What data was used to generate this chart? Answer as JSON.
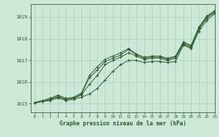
{
  "title": "Graphe pression niveau de la mer (hPa)",
  "background_color": "#cde8d8",
  "grid_color": "#a8cdb8",
  "line_color": "#2d5a2d",
  "xlim": [
    -0.5,
    23
  ],
  "ylim": [
    1014.6,
    1019.6
  ],
  "yticks": [
    1015,
    1016,
    1017,
    1018,
    1019
  ],
  "xticks": [
    0,
    1,
    2,
    3,
    4,
    5,
    6,
    7,
    8,
    9,
    10,
    11,
    12,
    13,
    14,
    15,
    16,
    17,
    18,
    19,
    20,
    21,
    22,
    23
  ],
  "lines": [
    [
      1015.05,
      1015.1,
      1015.15,
      1015.25,
      1015.15,
      1015.2,
      1015.3,
      1015.45,
      1015.7,
      1016.1,
      1016.5,
      1016.8,
      1017.0,
      1017.0,
      1016.9,
      1016.95,
      1016.95,
      1016.9,
      1016.95,
      1017.7,
      1017.55,
      1018.35,
      1018.85,
      1019.15
    ],
    [
      1015.05,
      1015.1,
      1015.2,
      1015.3,
      1015.2,
      1015.25,
      1015.4,
      1015.9,
      1016.3,
      1016.8,
      1017.0,
      1017.15,
      1017.35,
      1017.2,
      1017.05,
      1017.1,
      1017.1,
      1017.0,
      1017.1,
      1017.75,
      1017.6,
      1018.45,
      1018.95,
      1019.2
    ],
    [
      1015.05,
      1015.1,
      1015.2,
      1015.35,
      1015.2,
      1015.25,
      1015.45,
      1016.2,
      1016.55,
      1016.95,
      1017.1,
      1017.25,
      1017.5,
      1017.25,
      1017.1,
      1017.15,
      1017.15,
      1017.05,
      1017.15,
      1017.8,
      1017.65,
      1018.5,
      1019.0,
      1019.25
    ],
    [
      1015.05,
      1015.15,
      1015.25,
      1015.4,
      1015.25,
      1015.3,
      1015.5,
      1016.3,
      1016.7,
      1017.05,
      1017.2,
      1017.35,
      1017.55,
      1017.3,
      1017.15,
      1017.2,
      1017.2,
      1017.1,
      1017.2,
      1017.85,
      1017.7,
      1018.55,
      1019.05,
      1019.3
    ]
  ]
}
